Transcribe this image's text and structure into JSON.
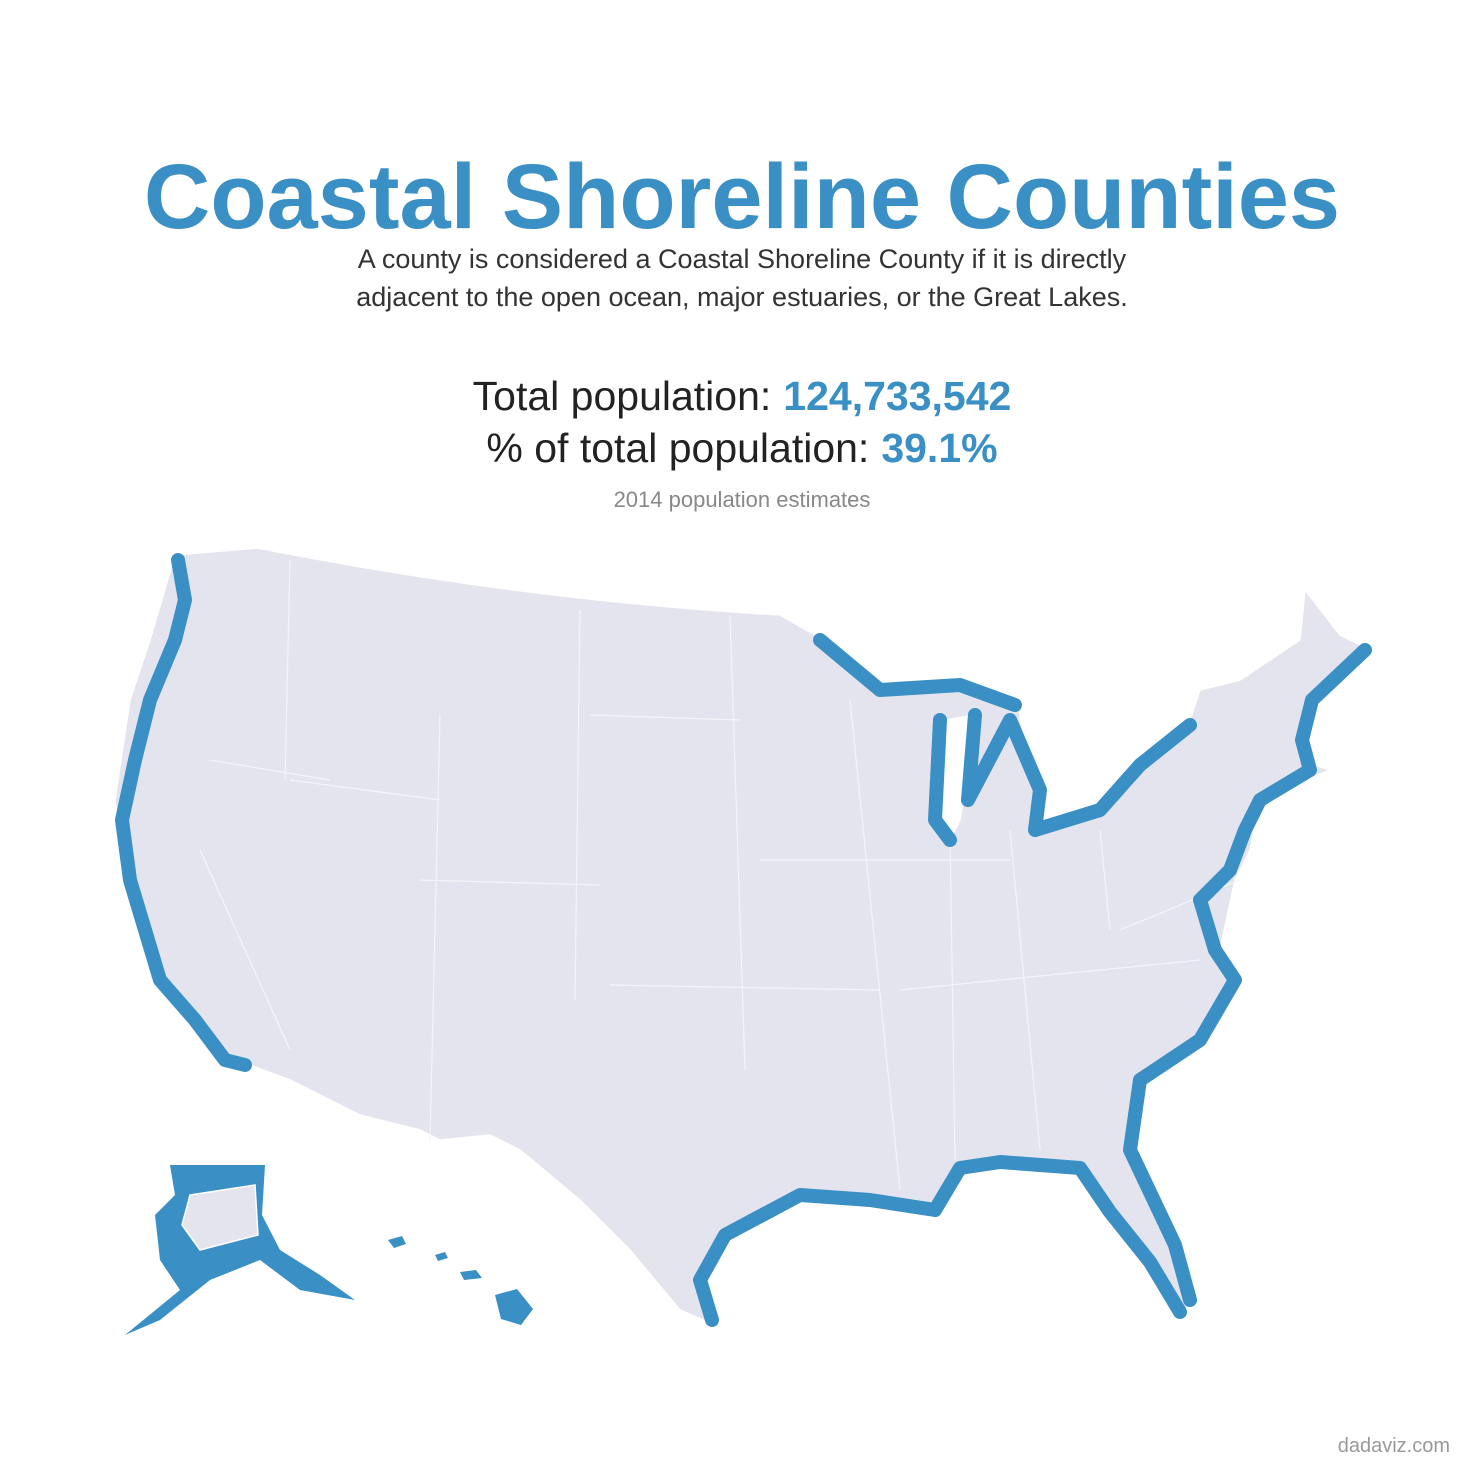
{
  "header": {
    "title": "Coastal Shoreline Counties",
    "subtitle": [
      "A county is considered a Coastal Shoreline County if it is directly",
      "adjacent to the open ocean, major estuaries, or the Great Lakes."
    ]
  },
  "stats": [
    {
      "label": "Total population:",
      "value": "124,733,542"
    },
    {
      "label": "% of total population:",
      "value": "39.1%"
    }
  ],
  "note": "2014 population estimates",
  "footer": {
    "source": "dadaviz.com"
  }
}
